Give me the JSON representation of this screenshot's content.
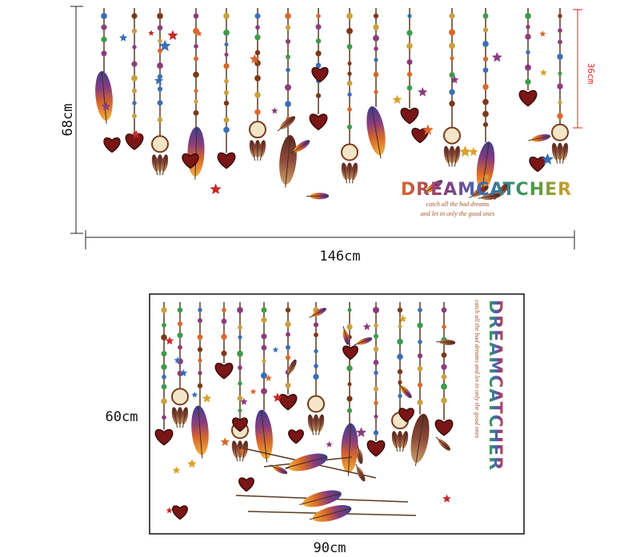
{
  "top_panel": {
    "height_label": "68cm",
    "width_label": "146cm",
    "drop_label": "36cm",
    "title": "DREAMCATCHER",
    "tagline": [
      "catch all the bad dreams",
      "and let in only the good ones"
    ]
  },
  "bottom_panel": {
    "height_label": "60cm",
    "width_label": "90cm",
    "title": "DREAMCATCHER",
    "tagline": "catch all the bad dreams and let in only the good ones"
  }
}
